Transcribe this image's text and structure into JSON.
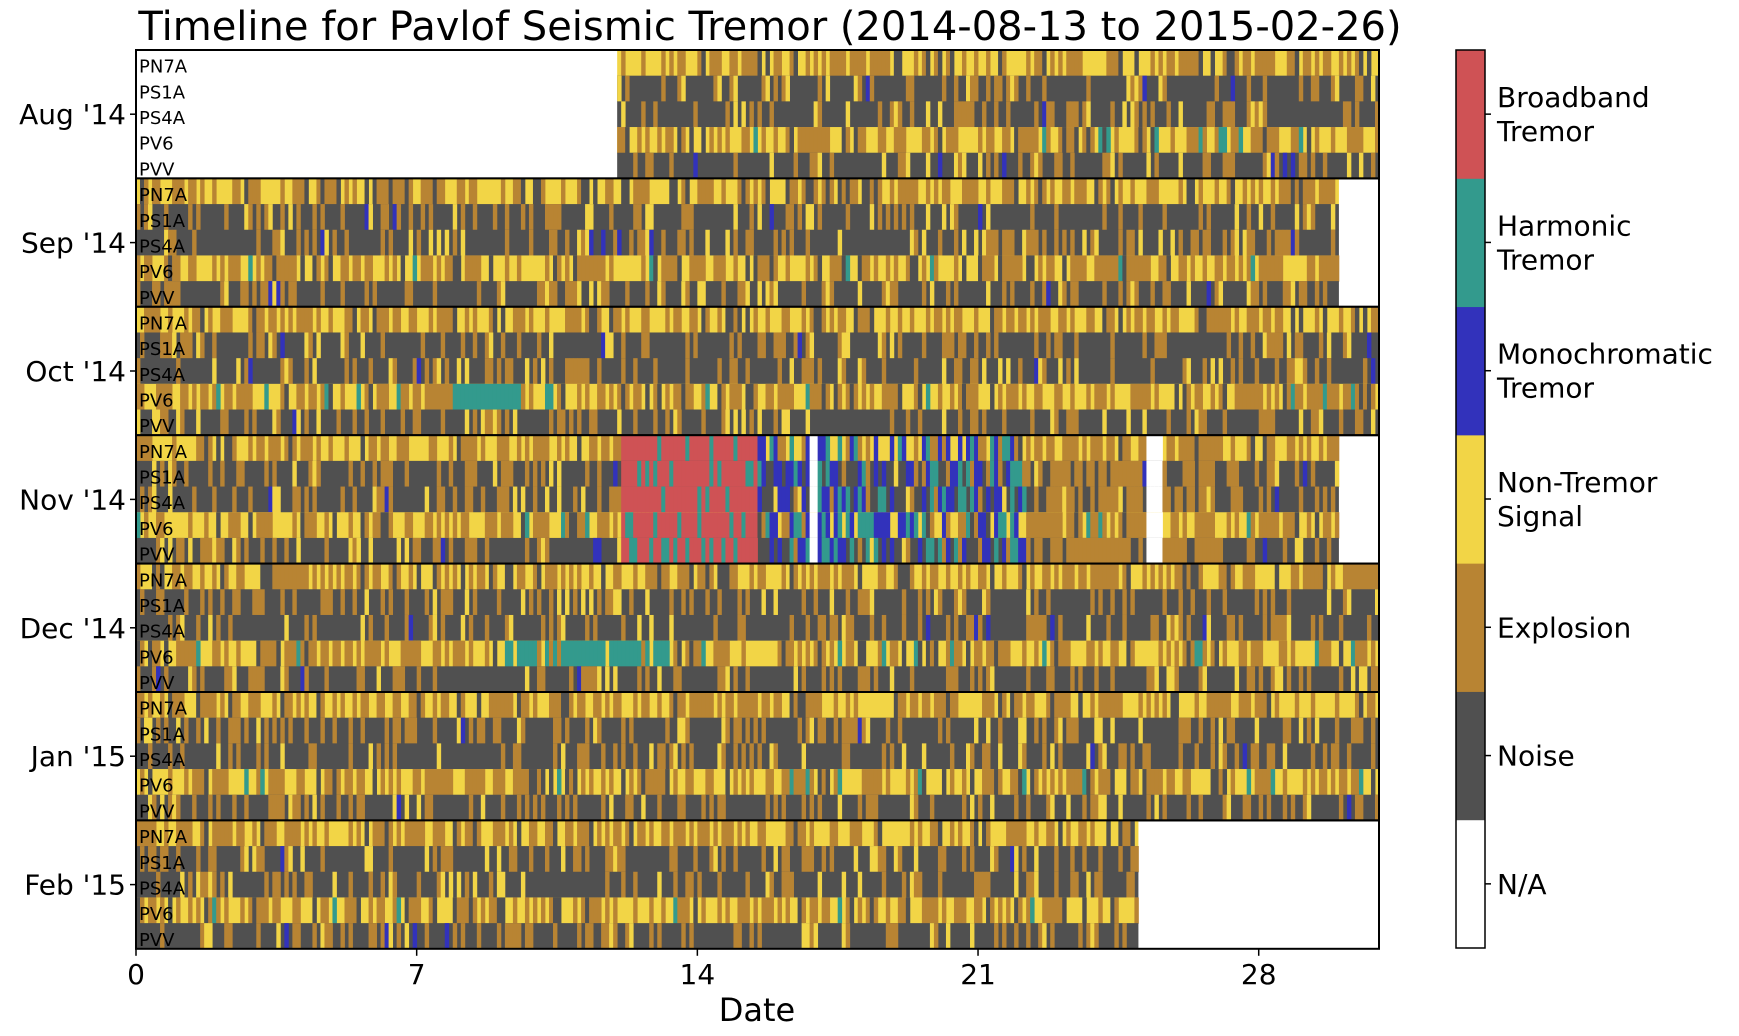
{
  "chart_data": {
    "type": "heatmap",
    "title": "Timeline for Pavlof Seismic Tremor (2014-08-13 to 2015-02-26)",
    "xlabel": "Date",
    "x_ticks": [
      "0",
      "7",
      "14",
      "21",
      "28"
    ],
    "x_tick_values": [
      0,
      7,
      14,
      21,
      28
    ],
    "xlim": [
      0,
      31
    ],
    "months": [
      "Aug '14",
      "Sep '14",
      "Oct '14",
      "Nov '14",
      "Dec '14",
      "Jan '15",
      "Feb '15"
    ],
    "month_data_range_days": [
      [
        12,
        31
      ],
      [
        0,
        30
      ],
      [
        0,
        31
      ],
      [
        0,
        30
      ],
      [
        0,
        31
      ],
      [
        0,
        31
      ],
      [
        0,
        25
      ]
    ],
    "stations": [
      "PN7A",
      "PS1A",
      "PS4A",
      "PV6",
      "PVV"
    ],
    "classes": [
      {
        "label": "N/A",
        "color": "#ffffff"
      },
      {
        "label": "Noise",
        "color": "#505050"
      },
      {
        "label": "Explosion",
        "color": "#b88433"
      },
      {
        "label": "Non-Tremor\nSignal",
        "color": "#f2d546"
      },
      {
        "label": "Monochromatic\nTremor",
        "color": "#3232bb"
      },
      {
        "label": "Harmonic\nTremor",
        "color": "#339a8d"
      },
      {
        "label": "Broadband\nTremor",
        "color": "#cf5255"
      }
    ],
    "legend_placement": "right colorbar",
    "grid": false
  }
}
